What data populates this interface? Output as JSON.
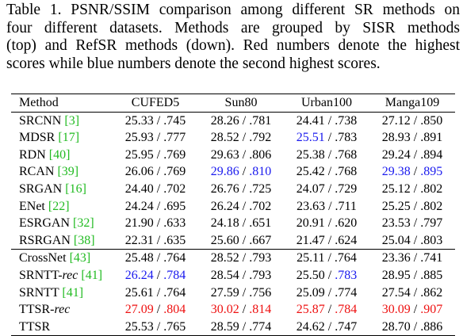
{
  "caption": {
    "line1": "Table 1. PSNR/SSIM comparison among different SR methods on",
    "line2": "four different datasets.  Methods are grouped by SISR methods",
    "line3": "(top) and RefSR methods (down). Red numbers denote the highest",
    "line4": "scores while blue numbers denote the second highest scores."
  },
  "table": {
    "headers": [
      "Method",
      "CUFED5",
      "Sun80",
      "Urban100",
      "Manga109"
    ],
    "sisr_rows": [
      {
        "name": "SRCNN",
        "suffix": "",
        "ref": "[3]",
        "cells": [
          [
            "25.33",
            "red0",
            ".745",
            "red0"
          ],
          [
            "28.26",
            "n",
            ".781",
            "n"
          ],
          [
            "24.41",
            "n",
            ".738",
            "n"
          ],
          [
            "27.12",
            "n",
            ".850",
            "n"
          ]
        ]
      },
      {
        "name": "MDSR",
        "suffix": "",
        "ref": "[17]",
        "cells": [
          [
            "25.93",
            "n",
            ".777",
            "n"
          ],
          [
            "28.52",
            "n",
            ".792",
            "n"
          ],
          [
            "25.51",
            "blue",
            ".783",
            "n"
          ],
          [
            "28.93",
            "n",
            ".891",
            "n"
          ]
        ]
      },
      {
        "name": "RDN",
        "suffix": "",
        "ref": "[40]",
        "cells": [
          [
            "25.95",
            "n",
            ".769",
            "n"
          ],
          [
            "29.63",
            "n",
            ".806",
            "n"
          ],
          [
            "25.38",
            "n",
            ".768",
            "n"
          ],
          [
            "29.24",
            "n",
            ".894",
            "n"
          ]
        ]
      },
      {
        "name": "RCAN",
        "suffix": "",
        "ref": "[39]",
        "cells": [
          [
            "26.06",
            "n",
            ".769",
            "n"
          ],
          [
            "29.86",
            "blue",
            ".810",
            "blue"
          ],
          [
            "25.42",
            "n",
            ".768",
            "n"
          ],
          [
            "29.38",
            "blue",
            ".895",
            "blue"
          ]
        ]
      },
      {
        "name": "SRGAN",
        "suffix": "",
        "ref": "[16]",
        "cells": [
          [
            "24.40",
            "n",
            ".702",
            "n"
          ],
          [
            "26.76",
            "n",
            ".725",
            "n"
          ],
          [
            "24.07",
            "n",
            ".729",
            "n"
          ],
          [
            "25.12",
            "n",
            ".802",
            "n"
          ]
        ]
      },
      {
        "name": "ENet",
        "suffix": "",
        "ref": "[22]",
        "cells": [
          [
            "24.24",
            "n",
            ".695",
            "n"
          ],
          [
            "26.24",
            "n",
            ".702",
            "n"
          ],
          [
            "23.63",
            "n",
            ".711",
            "n"
          ],
          [
            "25.25",
            "n",
            ".802",
            "n"
          ]
        ]
      },
      {
        "name": "ESRGAN",
        "suffix": "",
        "ref": "[32]",
        "cells": [
          [
            "21.90",
            "n",
            ".633",
            "n"
          ],
          [
            "24.18",
            "n",
            ".651",
            "n"
          ],
          [
            "20.91",
            "n",
            ".620",
            "n"
          ],
          [
            "23.53",
            "n",
            ".797",
            "n"
          ]
        ]
      },
      {
        "name": "RSRGAN",
        "suffix": "",
        "ref": "[38]",
        "cells": [
          [
            "22.31",
            "n",
            ".635",
            "n"
          ],
          [
            "25.60",
            "n",
            ".667",
            "n"
          ],
          [
            "21.47",
            "n",
            ".624",
            "n"
          ],
          [
            "25.04",
            "n",
            ".803",
            "n"
          ]
        ]
      }
    ],
    "refsr_rows": [
      {
        "name": "CrossNet",
        "suffix": "",
        "ref": "[43]",
        "cells": [
          [
            "25.48",
            "n",
            ".764",
            "n"
          ],
          [
            "28.52",
            "n",
            ".793",
            "n"
          ],
          [
            "25.11",
            "n",
            ".764",
            "n"
          ],
          [
            "23.36",
            "n",
            ".741",
            "n"
          ]
        ]
      },
      {
        "name": "SRNTT-",
        "suffix": "rec",
        "ref": "[41]",
        "cells": [
          [
            "26.24",
            "blue",
            ".784",
            "blue"
          ],
          [
            "28.54",
            "n",
            ".793",
            "n"
          ],
          [
            "25.50",
            "n",
            ".783",
            "blue"
          ],
          [
            "28.95",
            "n",
            ".885",
            "n"
          ]
        ]
      },
      {
        "name": "SRNTT",
        "suffix": "",
        "ref": "[41]",
        "cells": [
          [
            "25.61",
            "n",
            ".764",
            "n"
          ],
          [
            "27.59",
            "n",
            ".756",
            "n"
          ],
          [
            "25.09",
            "n",
            ".774",
            "n"
          ],
          [
            "27.54",
            "n",
            ".862",
            "n"
          ]
        ]
      },
      {
        "name": "TTSR-",
        "suffix": "rec",
        "ref": "",
        "cells": [
          [
            "27.09",
            "red",
            ".804",
            "red"
          ],
          [
            "30.02",
            "red",
            ".814",
            "red"
          ],
          [
            "25.87",
            "red",
            ".784",
            "red"
          ],
          [
            "30.09",
            "red",
            ".907",
            "red"
          ]
        ]
      },
      {
        "name": "TTSR",
        "suffix": "",
        "ref": "",
        "cells": [
          [
            "25.53",
            "n",
            ".765",
            "n"
          ],
          [
            "28.59",
            "n",
            ".774",
            "n"
          ],
          [
            "24.62",
            "n",
            ".747",
            "n"
          ],
          [
            "28.70",
            "n",
            ".886",
            "n"
          ]
        ]
      }
    ]
  }
}
